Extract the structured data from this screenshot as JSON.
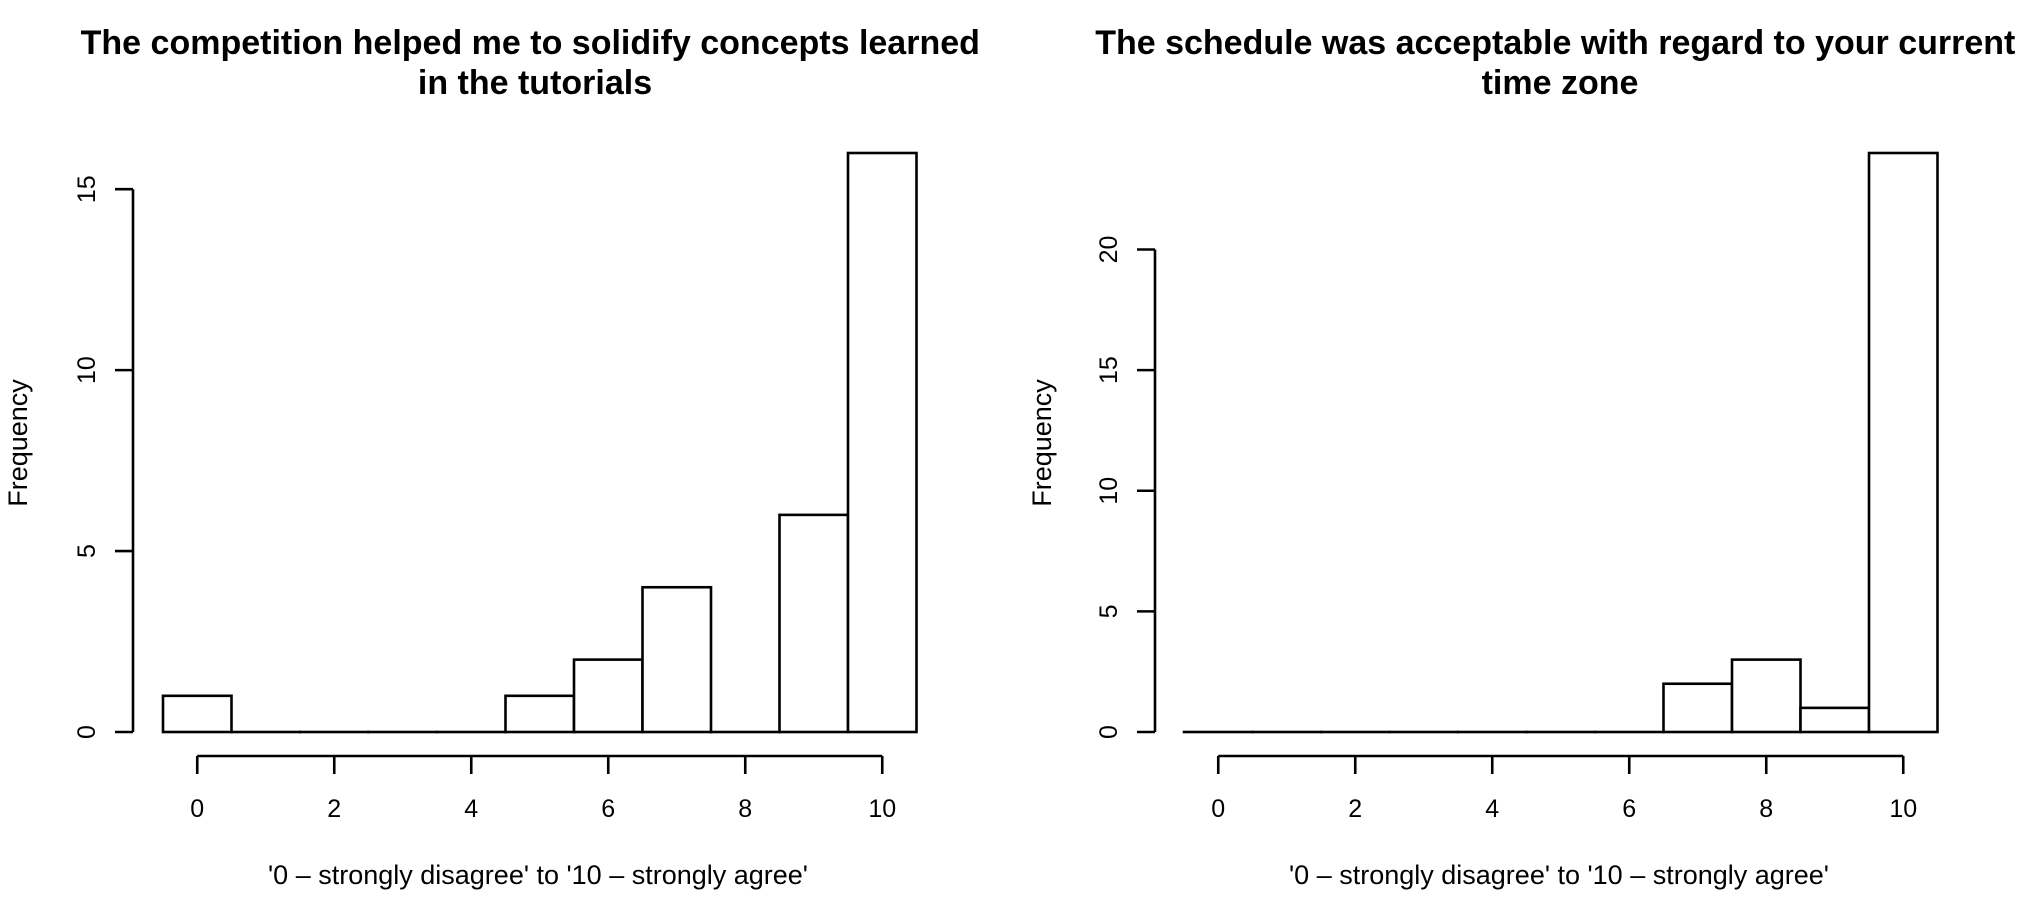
{
  "chart_data": [
    {
      "type": "bar",
      "title": "The competition helped me to solidify concepts learned in the tutorials",
      "xlabel": "'0 – strongly disagree' to '10 – strongly agree'",
      "ylabel": "Frequency",
      "categories": [
        "0",
        "1",
        "2",
        "3",
        "4",
        "5",
        "6",
        "7",
        "8",
        "9",
        "10"
      ],
      "values": [
        1,
        0,
        0,
        0,
        0,
        1,
        2,
        4,
        0,
        6,
        16
      ],
      "x_ticks": [
        "0",
        "2",
        "4",
        "6",
        "8",
        "10"
      ],
      "y_ticks": [
        "0",
        "5",
        "10",
        "15"
      ],
      "ylim": [
        0,
        16
      ],
      "grid": false,
      "legend": "none"
    },
    {
      "type": "bar",
      "title": "The schedule was acceptable with regard to your current time zone",
      "xlabel": "'0 – strongly disagree' to '10 – strongly agree'",
      "ylabel": "Frequency",
      "categories": [
        "0",
        "1",
        "2",
        "3",
        "4",
        "5",
        "6",
        "7",
        "8",
        "9",
        "10"
      ],
      "values": [
        0,
        0,
        0,
        0,
        0,
        0,
        0,
        2,
        3,
        1,
        24
      ],
      "x_ticks": [
        "0",
        "2",
        "4",
        "6",
        "8",
        "10"
      ],
      "y_ticks": [
        "0",
        "5",
        "10",
        "15",
        "20"
      ],
      "ylim": [
        0,
        24
      ],
      "grid": false,
      "legend": "none"
    }
  ]
}
